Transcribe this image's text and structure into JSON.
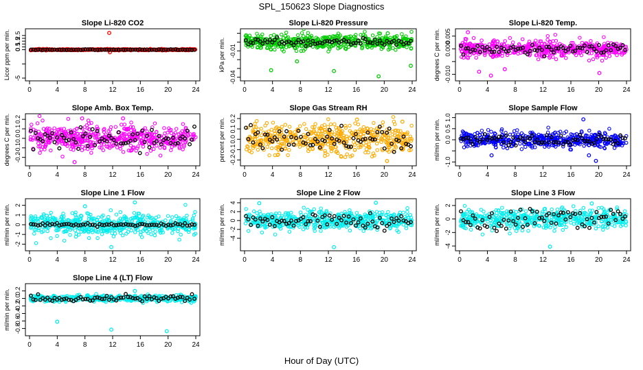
{
  "figure": {
    "title": "SPL_150623  Slope Diagnostics",
    "xlabel": "Hour of Day (UTC)"
  },
  "chart_data": [
    {
      "type": "scatter",
      "title": "Slope Li-820 CO2",
      "ylabel": "Licor ppm per min.",
      "xlim": [
        0,
        24
      ],
      "ylim": [
        -5,
        3.2
      ],
      "yticks": [
        -5,
        -2.5,
        0,
        0.5,
        1,
        1.5,
        2,
        2.5
      ],
      "ytick_labels": [
        "-5",
        "",
        "0",
        "0.5",
        "1",
        "1.5",
        "2",
        "2.5"
      ],
      "xticks": [
        0,
        4,
        8,
        12,
        16,
        20,
        24
      ],
      "color": "#ff0000",
      "base": 0.0,
      "noise": 0.06,
      "outliers": [
        [
          11.5,
          2.95
        ],
        [
          11.6,
          -0.45
        ]
      ],
      "black_base": 0.0,
      "black_noise": 0.03
    },
    {
      "type": "scatter",
      "title": "Slope Li-820 Pressure",
      "ylabel": "kPa per min.",
      "xlim": [
        0,
        24
      ],
      "ylim": [
        -0.041,
        0.012
      ],
      "yticks": [
        -0.04,
        -0.03,
        -0.02,
        -0.01,
        0.0,
        0.01
      ],
      "ytick_labels": [
        "-0.04",
        "",
        "",
        "-0.01",
        "",
        ""
      ],
      "xticks": [
        0,
        4,
        8,
        12,
        16,
        20,
        24
      ],
      "color": "#00cc00",
      "base": 0.0,
      "noise": 0.004,
      "outliers": [
        [
          3.8,
          -0.032
        ],
        [
          7.5,
          -0.022
        ],
        [
          12.8,
          -0.033
        ],
        [
          19.2,
          -0.039
        ],
        [
          23.8,
          -0.027
        ],
        [
          20.5,
          0.01
        ]
      ],
      "black_base": 0.0,
      "black_noise": 0.002
    },
    {
      "type": "scatter",
      "title": "Slope Li-820 Temp.",
      "ylabel": "degrees C per min.",
      "xlim": [
        0,
        24
      ],
      "ylim": [
        -0.0115,
        0.0068
      ],
      "yticks": [
        -0.01,
        -0.005,
        0.0,
        0.005
      ],
      "ytick_labels": [
        "-0.010",
        "",
        "0.000",
        "0.005"
      ],
      "xticks": [
        0,
        4,
        8,
        12,
        16,
        20,
        24
      ],
      "color": "#ff00ff",
      "base": 0.0,
      "noise": 0.0016,
      "outliers": [
        [
          1.2,
          0.0065
        ],
        [
          2.8,
          -0.009
        ],
        [
          4.5,
          -0.0105
        ],
        [
          6.5,
          -0.008
        ],
        [
          20.1,
          -0.0095
        ]
      ],
      "black_base": 0.0,
      "black_noise": 0.0009
    },
    {
      "type": "scatter",
      "title": "Slope Amb. Box Temp.",
      "ylabel": "degrees C per min.",
      "xlim": [
        0,
        24
      ],
      "ylim": [
        -0.26,
        0.23
      ],
      "yticks": [
        -0.2,
        -0.1,
        0.0,
        0.1,
        0.2
      ],
      "ytick_labels": [
        "-0.2",
        "-0.1",
        "0.0",
        "0.1",
        "0.2"
      ],
      "xticks": [
        0,
        4,
        8,
        12,
        16,
        20,
        24
      ],
      "color": "#ff00ff",
      "base": 0.0,
      "noise": 0.07,
      "outliers": [
        [
          6.5,
          -0.25
        ],
        [
          7.6,
          0.21
        ],
        [
          13.5,
          0.21
        ]
      ],
      "black_base": 0.0,
      "black_noise": 0.05
    },
    {
      "type": "scatter",
      "title": "Slope Gas Stream RH",
      "ylabel": "percent per min.",
      "xlim": [
        0,
        24
      ],
      "ylim": [
        -0.23,
        0.22
      ],
      "yticks": [
        -0.2,
        -0.1,
        0.0,
        0.1,
        0.2
      ],
      "ytick_labels": [
        "-0.2",
        "-0.1",
        "0.0",
        "0.1",
        "0.2"
      ],
      "xticks": [
        0,
        4,
        8,
        12,
        16,
        20,
        24
      ],
      "color": "#ffaa00",
      "base": 0.0,
      "noise": 0.07,
      "outliers": [
        [
          16.1,
          0.19
        ],
        [
          20.4,
          -0.21
        ],
        [
          22.6,
          0.17
        ]
      ],
      "black_base": 0.0,
      "black_noise": 0.05
    },
    {
      "type": "scatter",
      "title": "Slope Sample Flow",
      "ylabel": "ml/min per min.",
      "xlim": [
        0,
        24
      ],
      "ylim": [
        -1.05,
        1.05
      ],
      "yticks": [
        -1.0,
        -0.5,
        0.0,
        0.5,
        1.0
      ],
      "ytick_labels": [
        "-1.0",
        "",
        "0.0",
        "0.5",
        "1.0"
      ],
      "xticks": [
        0,
        4,
        8,
        12,
        16,
        20,
        24
      ],
      "color": "#0000ff",
      "base": 0.0,
      "noise": 0.17,
      "outliers": [
        [
          17.8,
          0.92
        ],
        [
          19.6,
          -0.95
        ],
        [
          4.6,
          -0.7
        ],
        [
          18.6,
          -0.7
        ]
      ],
      "black_base": 0.0,
      "black_noise": 0.12
    },
    {
      "type": "scatter",
      "title": "Slope Line 1 Flow",
      "ylabel": "ml/min per min.",
      "xlim": [
        0,
        24
      ],
      "ylim": [
        -2.4,
        2.4
      ],
      "yticks": [
        -2,
        -1,
        0,
        1,
        2
      ],
      "ytick_labels": [
        "-2",
        "-1",
        "0",
        "1",
        "2"
      ],
      "xticks": [
        0,
        4,
        8,
        12,
        16,
        20,
        24
      ],
      "color": "#00eeee",
      "base": 0.0,
      "noise": 0.55,
      "outliers": [
        [
          8.0,
          1.9
        ],
        [
          15.2,
          2.3
        ],
        [
          11.8,
          -2.3
        ]
      ],
      "black_base": 0.0,
      "black_noise": 0.08
    },
    {
      "type": "scatter",
      "title": "Slope Line 2 Flow",
      "ylabel": "ml/min per min.",
      "xlim": [
        0,
        24
      ],
      "ylim": [
        -6.2,
        4.3
      ],
      "yticks": [
        -4,
        -2,
        0,
        2,
        4
      ],
      "ytick_labels": [
        "-4",
        "-2",
        "0",
        "2",
        "4"
      ],
      "xticks": [
        0,
        4,
        8,
        12,
        16,
        20,
        24
      ],
      "color": "#00eeee",
      "base": 0.0,
      "noise": 1.0,
      "outliers": [
        [
          12.8,
          -6.0
        ],
        [
          18.8,
          4.0
        ],
        [
          2.1,
          3.9
        ]
      ],
      "black_base": 0.0,
      "black_noise": 0.9
    },
    {
      "type": "scatter",
      "title": "Slope Line 3 Flow",
      "ylabel": "ml/min per min.",
      "xlim": [
        0,
        24
      ],
      "ylim": [
        -4.3,
        2.6
      ],
      "yticks": [
        -4,
        -2,
        0,
        2
      ],
      "ytick_labels": [
        "-4",
        "-2",
        "0",
        "2"
      ],
      "xticks": [
        0,
        4,
        8,
        12,
        16,
        20,
        24
      ],
      "color": "#00eeee",
      "base": 0.0,
      "noise": 0.7,
      "outliers": [
        [
          13.0,
          -4.1
        ],
        [
          19.0,
          2.3
        ]
      ],
      "black_base": 0.0,
      "black_noise": 0.8
    },
    {
      "type": "scatter",
      "title": "Slope Line 4 (LT) Flow",
      "ylabel": "ml/min per min.",
      "xlim": [
        0,
        24
      ],
      "ylim": [
        -0.92,
        0.32
      ],
      "yticks": [
        -0.8,
        -0.6,
        -0.4,
        -0.2,
        0.0,
        0.2
      ],
      "ytick_labels": [
        "-0.8",
        "-0.6",
        "-0.4",
        "-0.2",
        "0.0",
        "0.2"
      ],
      "xticks": [
        0,
        4,
        8,
        12,
        16,
        20,
        24
      ],
      "color": "#00eeee",
      "base": 0.0,
      "noise": 0.04,
      "outliers": [
        [
          4.0,
          -0.62
        ],
        [
          11.8,
          -0.83
        ],
        [
          19.8,
          -0.87
        ],
        [
          15.2,
          0.2
        ]
      ],
      "black_base": 0.0,
      "black_noise": 0.04
    }
  ]
}
